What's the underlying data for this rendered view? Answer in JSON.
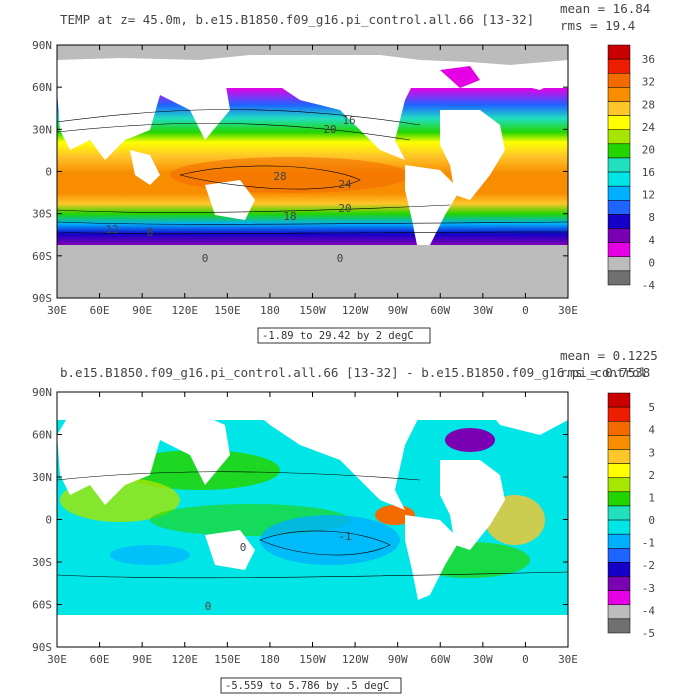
{
  "chart_data": [
    {
      "type": "heatmap",
      "title": "TEMP at z=  45.0m, b.e15.B1850.f09_g16.pi_control.all.66 [13-32]",
      "stats": {
        "mean": "mean = 16.84",
        "rms": "rms = 19.4"
      },
      "range_label": "-1.89 to 29.42 by 2 degC",
      "xticks": [
        "30E",
        "60E",
        "90E",
        "120E",
        "150E",
        "180",
        "150W",
        "120W",
        "90W",
        "60W",
        "30W",
        "0",
        "30E"
      ],
      "yticks": [
        "90N",
        "60N",
        "30N",
        "0",
        "30S",
        "60S",
        "90S"
      ],
      "colorbar": {
        "labels": [
          "36",
          "32",
          "28",
          "24",
          "20",
          "16",
          "12",
          "8",
          "4",
          "0",
          "-4"
        ],
        "colors": [
          "#c80000",
          "#ee1c00",
          "#f26a00",
          "#f88d00",
          "#ffc62a",
          "#ffff00",
          "#a6e600",
          "#22d400",
          "#21e0c0",
          "#00e6e6",
          "#00b0ff",
          "#1e64ff",
          "#1400c8",
          "#7a00b4",
          "#e600e6",
          "#bcbcbc",
          "#707070"
        ]
      },
      "contour_labels": [
        "16",
        "20",
        "28",
        "24",
        "18",
        "12",
        "8",
        "20",
        "0",
        "0"
      ]
    },
    {
      "type": "heatmap",
      "title": "b.e15.B1850.f09_g16.pi_control.all.66 [13-32] - b.e15.B1850.f09_g16.pi_control",
      "stats": {
        "mean": "mean = 0.1225",
        "rms": "rms = 0.7538"
      },
      "range_label": "-5.559 to 5.786 by .5 degC",
      "xticks": [
        "30E",
        "60E",
        "90E",
        "120E",
        "150E",
        "180",
        "150W",
        "120W",
        "90W",
        "60W",
        "30W",
        "0",
        "30E"
      ],
      "yticks": [
        "90N",
        "60N",
        "30N",
        "0",
        "30S",
        "60S",
        "90S"
      ],
      "colorbar": {
        "labels": [
          "5",
          "4",
          "3",
          "2",
          "1",
          "0",
          "-1",
          "-2",
          "-3",
          "-4",
          "-5"
        ],
        "colors": [
          "#c80000",
          "#ee1c00",
          "#f26a00",
          "#f88d00",
          "#ffc62a",
          "#ffff00",
          "#a6e600",
          "#22d400",
          "#21e0c0",
          "#00e6e6",
          "#00b0ff",
          "#1e64ff",
          "#1400c8",
          "#7a00b4",
          "#e600e6",
          "#bcbcbc",
          "#707070"
        ]
      },
      "contour_labels": [
        "-1",
        "0",
        "0"
      ]
    }
  ]
}
